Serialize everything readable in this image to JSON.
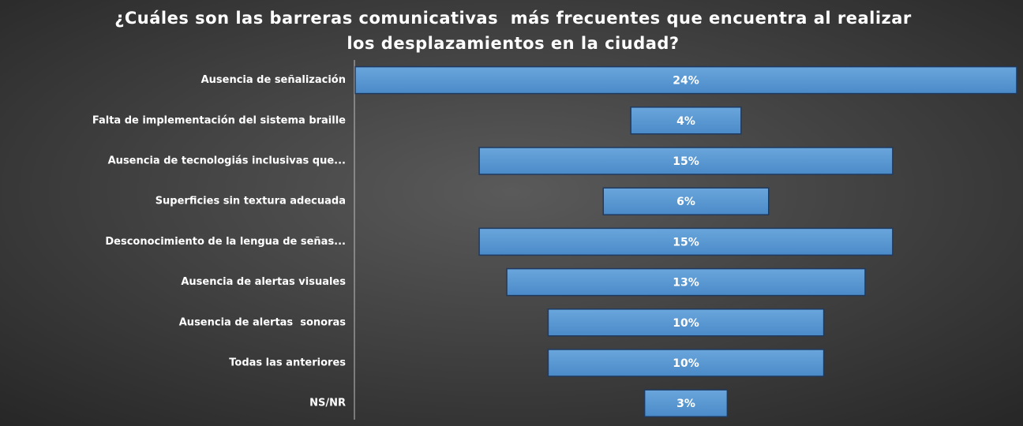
{
  "chart_data": {
    "type": "funnel",
    "title": [
      "¿Cuáles son las barreras comunicativas  más frecuentes que encuentra al realizar",
      "los desplazamientos en la ciudad?"
    ],
    "categories": [
      "Ausencia de señalización",
      "Falta de implementación del sistema braille",
      "Ausencia de tecnologiás inclusivas que...",
      "Superficies sin textura adecuada",
      "Desconocimiento de la lengua de señas...",
      "Ausencia de alertas visuales",
      "Ausencia de alertas  sonoras",
      "Todas las anteriores",
      "NS/NR"
    ],
    "values": [
      24,
      4,
      15,
      6,
      15,
      13,
      10,
      10,
      3
    ],
    "value_labels": [
      "24%",
      "4%",
      "15%",
      "6%",
      "15%",
      "13%",
      "10%",
      "10%",
      "3%"
    ],
    "color": "#5b9bd5"
  }
}
